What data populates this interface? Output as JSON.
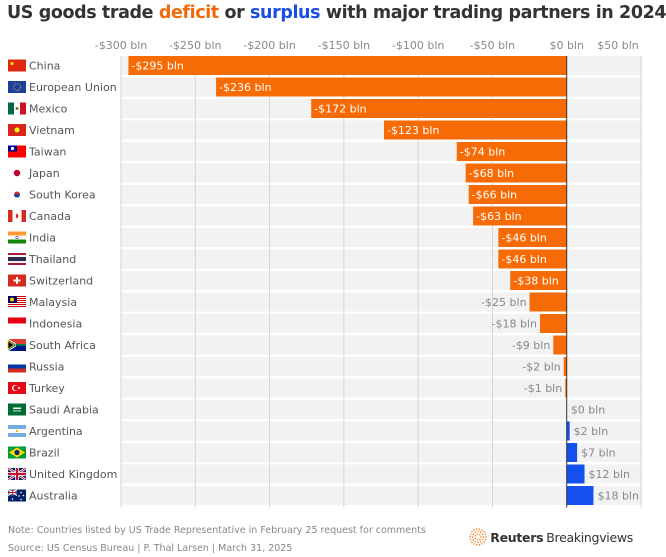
{
  "title": {
    "prefix": "US goods trade ",
    "deficit": "deficit",
    "middle": " or ",
    "surplus": "surplus",
    "suffix": " with major trading partners in 2024"
  },
  "colors": {
    "deficit": "#f76b07",
    "surplus": "#1450f0"
  },
  "chart_data": {
    "type": "bar",
    "orientation": "horizontal",
    "xlim": [
      -300,
      50
    ],
    "ticks": [
      -300,
      -250,
      -200,
      -150,
      -100,
      -50,
      0,
      50
    ],
    "tick_labels": [
      "-$300 bln",
      "-$250 bln",
      "-$200 bln",
      "-$150 bln",
      "-$100 bln",
      "-$50 bln",
      "$0 bln",
      "$50 bln"
    ],
    "grid": true,
    "categories": [
      "China",
      "European Union",
      "Mexico",
      "Vietnam",
      "Taiwan",
      "Japan",
      "South Korea",
      "Canada",
      "India",
      "Thailand",
      "Switzerland",
      "Malaysia",
      "Indonesia",
      "South Africa",
      "Russia",
      "Turkey",
      "Saudi Arabia",
      "Argentina",
      "Brazil",
      "United Kingdom",
      "Australia"
    ],
    "flags": [
      "flag-china-icon",
      "flag-eu-icon",
      "flag-mexico-icon",
      "flag-vietnam-icon",
      "flag-taiwan-icon",
      "flag-japan-icon",
      "flag-south-korea-icon",
      "flag-canada-icon",
      "flag-india-icon",
      "flag-thailand-icon",
      "flag-switzerland-icon",
      "flag-malaysia-icon",
      "flag-indonesia-icon",
      "flag-south-africa-icon",
      "flag-russia-icon",
      "flag-turkey-icon",
      "flag-saudi-arabia-icon",
      "flag-argentina-icon",
      "flag-brazil-icon",
      "flag-uk-icon",
      "flag-australia-icon"
    ],
    "values": [
      -295,
      -236,
      -172,
      -123,
      -74,
      -68,
      -66,
      -63,
      -46,
      -46,
      -38,
      -25,
      -18,
      -9,
      -2,
      -1,
      0,
      2,
      7,
      12,
      18
    ],
    "data_labels": [
      "-$295 bln",
      "-$236 bln",
      "-$172 bln",
      "-$123 bln",
      "-$74 bln",
      "-$68 bln",
      "-$66 bln",
      "-$63 bln",
      "-$46 bln",
      "-$46 bln",
      "-$38 bln",
      "-$25 bln",
      "-$18 bln",
      "-$9 bln",
      "-$2 bln",
      "-$1 bln",
      "$0 bln",
      "$2 bln",
      "$7 bln",
      "$12 bln",
      "$18 bln"
    ]
  },
  "footer": {
    "note": "Note: Countries listed by US Trade Representative in February 25 request for comments",
    "source": "Source: US Census Bureau | P. Thal Larsen | March 31, 2025",
    "logo_bold": "Reuters",
    "logo_rest": "Breakingviews"
  }
}
